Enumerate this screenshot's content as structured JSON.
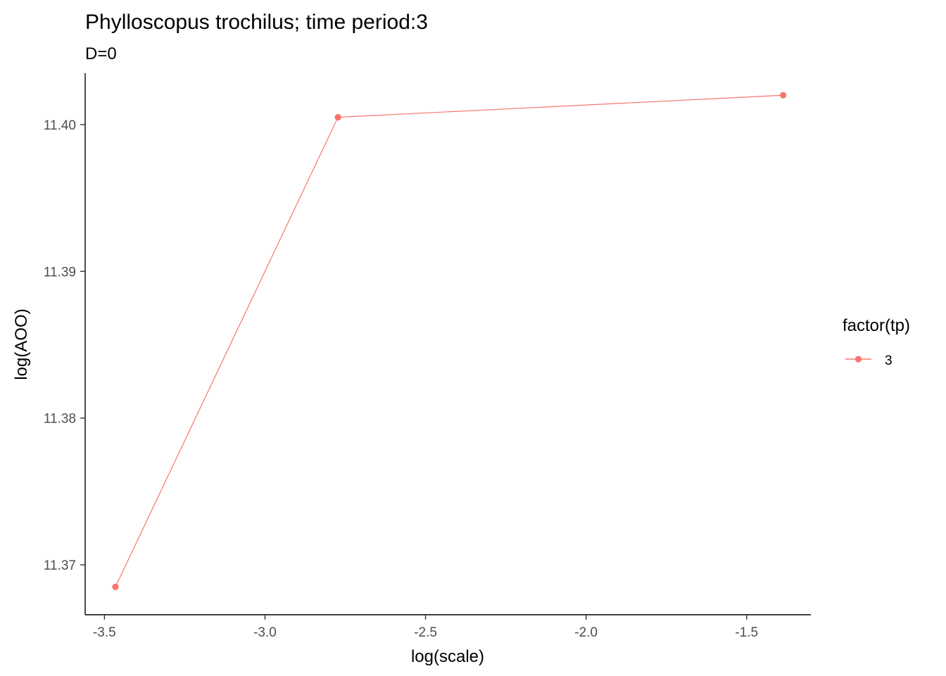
{
  "chart_data": {
    "type": "line",
    "title": "Phylloscopus trochilus; time period:3",
    "subtitle": "D=0",
    "xlabel": "log(scale)",
    "ylabel": "log(AOO)",
    "xlim": [
      -3.56,
      -1.3
    ],
    "ylim": [
      11.3666,
      11.4035
    ],
    "x_ticks": [
      -3.5,
      -3.0,
      -2.5,
      -2.0,
      -1.5
    ],
    "x_tick_labels": [
      "-3.5",
      "-3.0",
      "-2.5",
      "-2.0",
      "-1.5"
    ],
    "y_ticks": [
      11.37,
      11.38,
      11.39,
      11.4
    ],
    "y_tick_labels": [
      "11.37",
      "11.38",
      "11.39",
      "11.40"
    ],
    "grid": false,
    "legend": {
      "title": "factor(tp)",
      "position": "right",
      "entries": [
        "3"
      ]
    },
    "series": [
      {
        "name": "3",
        "color": "#F8766D",
        "x": [
          -3.4657,
          -2.7726,
          -1.3863
        ],
        "y": [
          11.3685,
          11.4005,
          11.402
        ]
      }
    ]
  }
}
